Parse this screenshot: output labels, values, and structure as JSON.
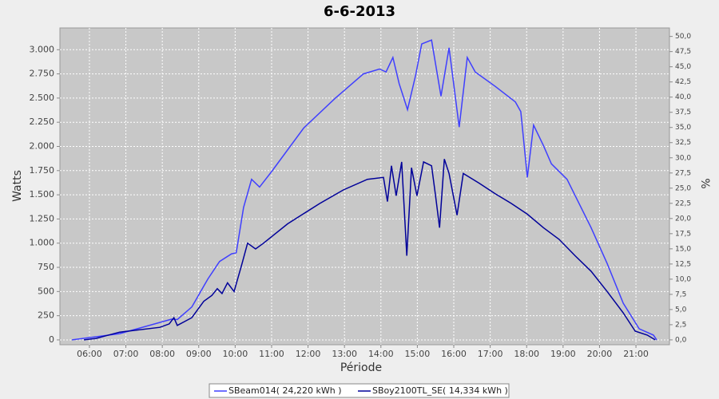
{
  "chart_data": {
    "type": "line",
    "title": "6-6-2013",
    "xlabel": "Période",
    "ylabel": "Watts",
    "y2label": "%",
    "xlim": [
      5.19,
      21.92
    ],
    "xticks": [
      {
        "value": 6,
        "label": "06:00"
      },
      {
        "value": 7,
        "label": "07:00"
      },
      {
        "value": 8,
        "label": "08:00"
      },
      {
        "value": 9,
        "label": "09:00"
      },
      {
        "value": 10,
        "label": "10:00"
      },
      {
        "value": 11,
        "label": "11:00"
      },
      {
        "value": 12,
        "label": "12:00"
      },
      {
        "value": 13,
        "label": "13:00"
      },
      {
        "value": 14,
        "label": "14:00"
      },
      {
        "value": 15,
        "label": "15:00"
      },
      {
        "value": 16,
        "label": "16:00"
      },
      {
        "value": 17,
        "label": "17:00"
      },
      {
        "value": 18,
        "label": "18:00"
      },
      {
        "value": 19,
        "label": "19:00"
      },
      {
        "value": 20,
        "label": "20:00"
      },
      {
        "value": 21,
        "label": "21:00"
      }
    ],
    "ylim": [
      -50,
      3225
    ],
    "yticks": [
      0,
      250,
      500,
      750,
      {
        "value": 1000,
        "label": "1.000"
      },
      {
        "value": 1250,
        "label": "1.250"
      },
      {
        "value": 1500,
        "label": "1.500"
      },
      {
        "value": 1750,
        "label": "1.750"
      },
      {
        "value": 2000,
        "label": "2.000"
      },
      {
        "value": 2250,
        "label": "2.250"
      },
      {
        "value": 2500,
        "label": "2.500"
      },
      {
        "value": 2750,
        "label": "2.750"
      },
      {
        "value": 3000,
        "label": "3.000"
      }
    ],
    "y2lim": [
      -0.8,
      51.4
    ],
    "y2ticks": [
      {
        "value": 0,
        "label": "0,0"
      },
      {
        "value": 2.5,
        "label": "2,5"
      },
      {
        "value": 5,
        "label": "5,0"
      },
      {
        "value": 7.5,
        "label": "7,5"
      },
      {
        "value": 10,
        "label": "10,0"
      },
      {
        "value": 12.5,
        "label": "12,5"
      },
      {
        "value": 15,
        "label": "15,0"
      },
      {
        "value": 17.5,
        "label": "17,5"
      },
      {
        "value": 20,
        "label": "20,0"
      },
      {
        "value": 22.5,
        "label": "22,5"
      },
      {
        "value": 25,
        "label": "25,0"
      },
      {
        "value": 27.5,
        "label": "27,5"
      },
      {
        "value": 30,
        "label": "30,0"
      },
      {
        "value": 32.5,
        "label": "32,5"
      },
      {
        "value": 35,
        "label": "35,0"
      },
      {
        "value": 37.5,
        "label": "37,5"
      },
      {
        "value": 40,
        "label": "40,0"
      },
      {
        "value": 42.5,
        "label": "42,5"
      },
      {
        "value": 45,
        "label": "45,0"
      },
      {
        "value": 47.5,
        "label": "47,5"
      },
      {
        "value": 50,
        "label": "50,0"
      }
    ],
    "grid": true,
    "legend": "bottom",
    "series": [
      {
        "name": "SBeam014( 24,220 kWh )",
        "color": "#3f3fff",
        "x": [
          5.52,
          6.83,
          8.26,
          8.41,
          8.81,
          9.25,
          9.57,
          9.9,
          10.03,
          10.23,
          10.45,
          10.67,
          11.0,
          11.88,
          12.75,
          13.52,
          13.96,
          14.14,
          14.33,
          14.5,
          14.73,
          14.95,
          15.12,
          15.39,
          15.65,
          15.87,
          16.15,
          16.37,
          16.59,
          17.14,
          17.69,
          17.84,
          18.02,
          18.19,
          18.46,
          18.68,
          19.11,
          19.77,
          20.21,
          20.65,
          21.09,
          21.48,
          21.57
        ],
        "values": [
          0,
          65,
          215,
          210,
          340,
          630,
          810,
          890,
          900,
          1370,
          1660,
          1580,
          1740,
          2190,
          2500,
          2750,
          2800,
          2770,
          2920,
          2650,
          2380,
          2730,
          3060,
          3100,
          2520,
          3020,
          2200,
          2920,
          2770,
          2620,
          2460,
          2360,
          1680,
          2220,
          2010,
          1820,
          1660,
          1160,
          790,
          380,
          115,
          50,
          0
        ]
      },
      {
        "name": "SBoy2100TL_SE( 14,334 kWh )",
        "color": "#000099",
        "x": [
          5.85,
          6.18,
          6.83,
          7.93,
          8.19,
          8.32,
          8.41,
          8.81,
          9.14,
          9.36,
          9.51,
          9.64,
          9.79,
          9.97,
          10.19,
          10.34,
          10.56,
          10.78,
          11.44,
          12.32,
          12.97,
          13.63,
          14.07,
          14.18,
          14.29,
          14.42,
          14.57,
          14.71,
          14.84,
          14.99,
          15.17,
          15.39,
          15.5,
          15.61,
          15.74,
          15.87,
          16.09,
          16.26,
          16.7,
          17.14,
          17.58,
          18.02,
          18.46,
          18.89,
          19.33,
          19.77,
          20.21,
          20.65,
          20.98,
          21.31,
          21.53
        ],
        "values": [
          0,
          15,
          80,
          130,
          165,
          230,
          150,
          230,
          400,
          460,
          530,
          480,
          590,
          500,
          790,
          1000,
          940,
          1000,
          1200,
          1410,
          1550,
          1660,
          1680,
          1430,
          1800,
          1490,
          1840,
          870,
          1780,
          1490,
          1840,
          1800,
          1490,
          1160,
          1870,
          1720,
          1290,
          1720,
          1620,
          1510,
          1410,
          1300,
          1160,
          1040,
          870,
          710,
          500,
          280,
          90,
          50,
          0
        ]
      }
    ]
  }
}
